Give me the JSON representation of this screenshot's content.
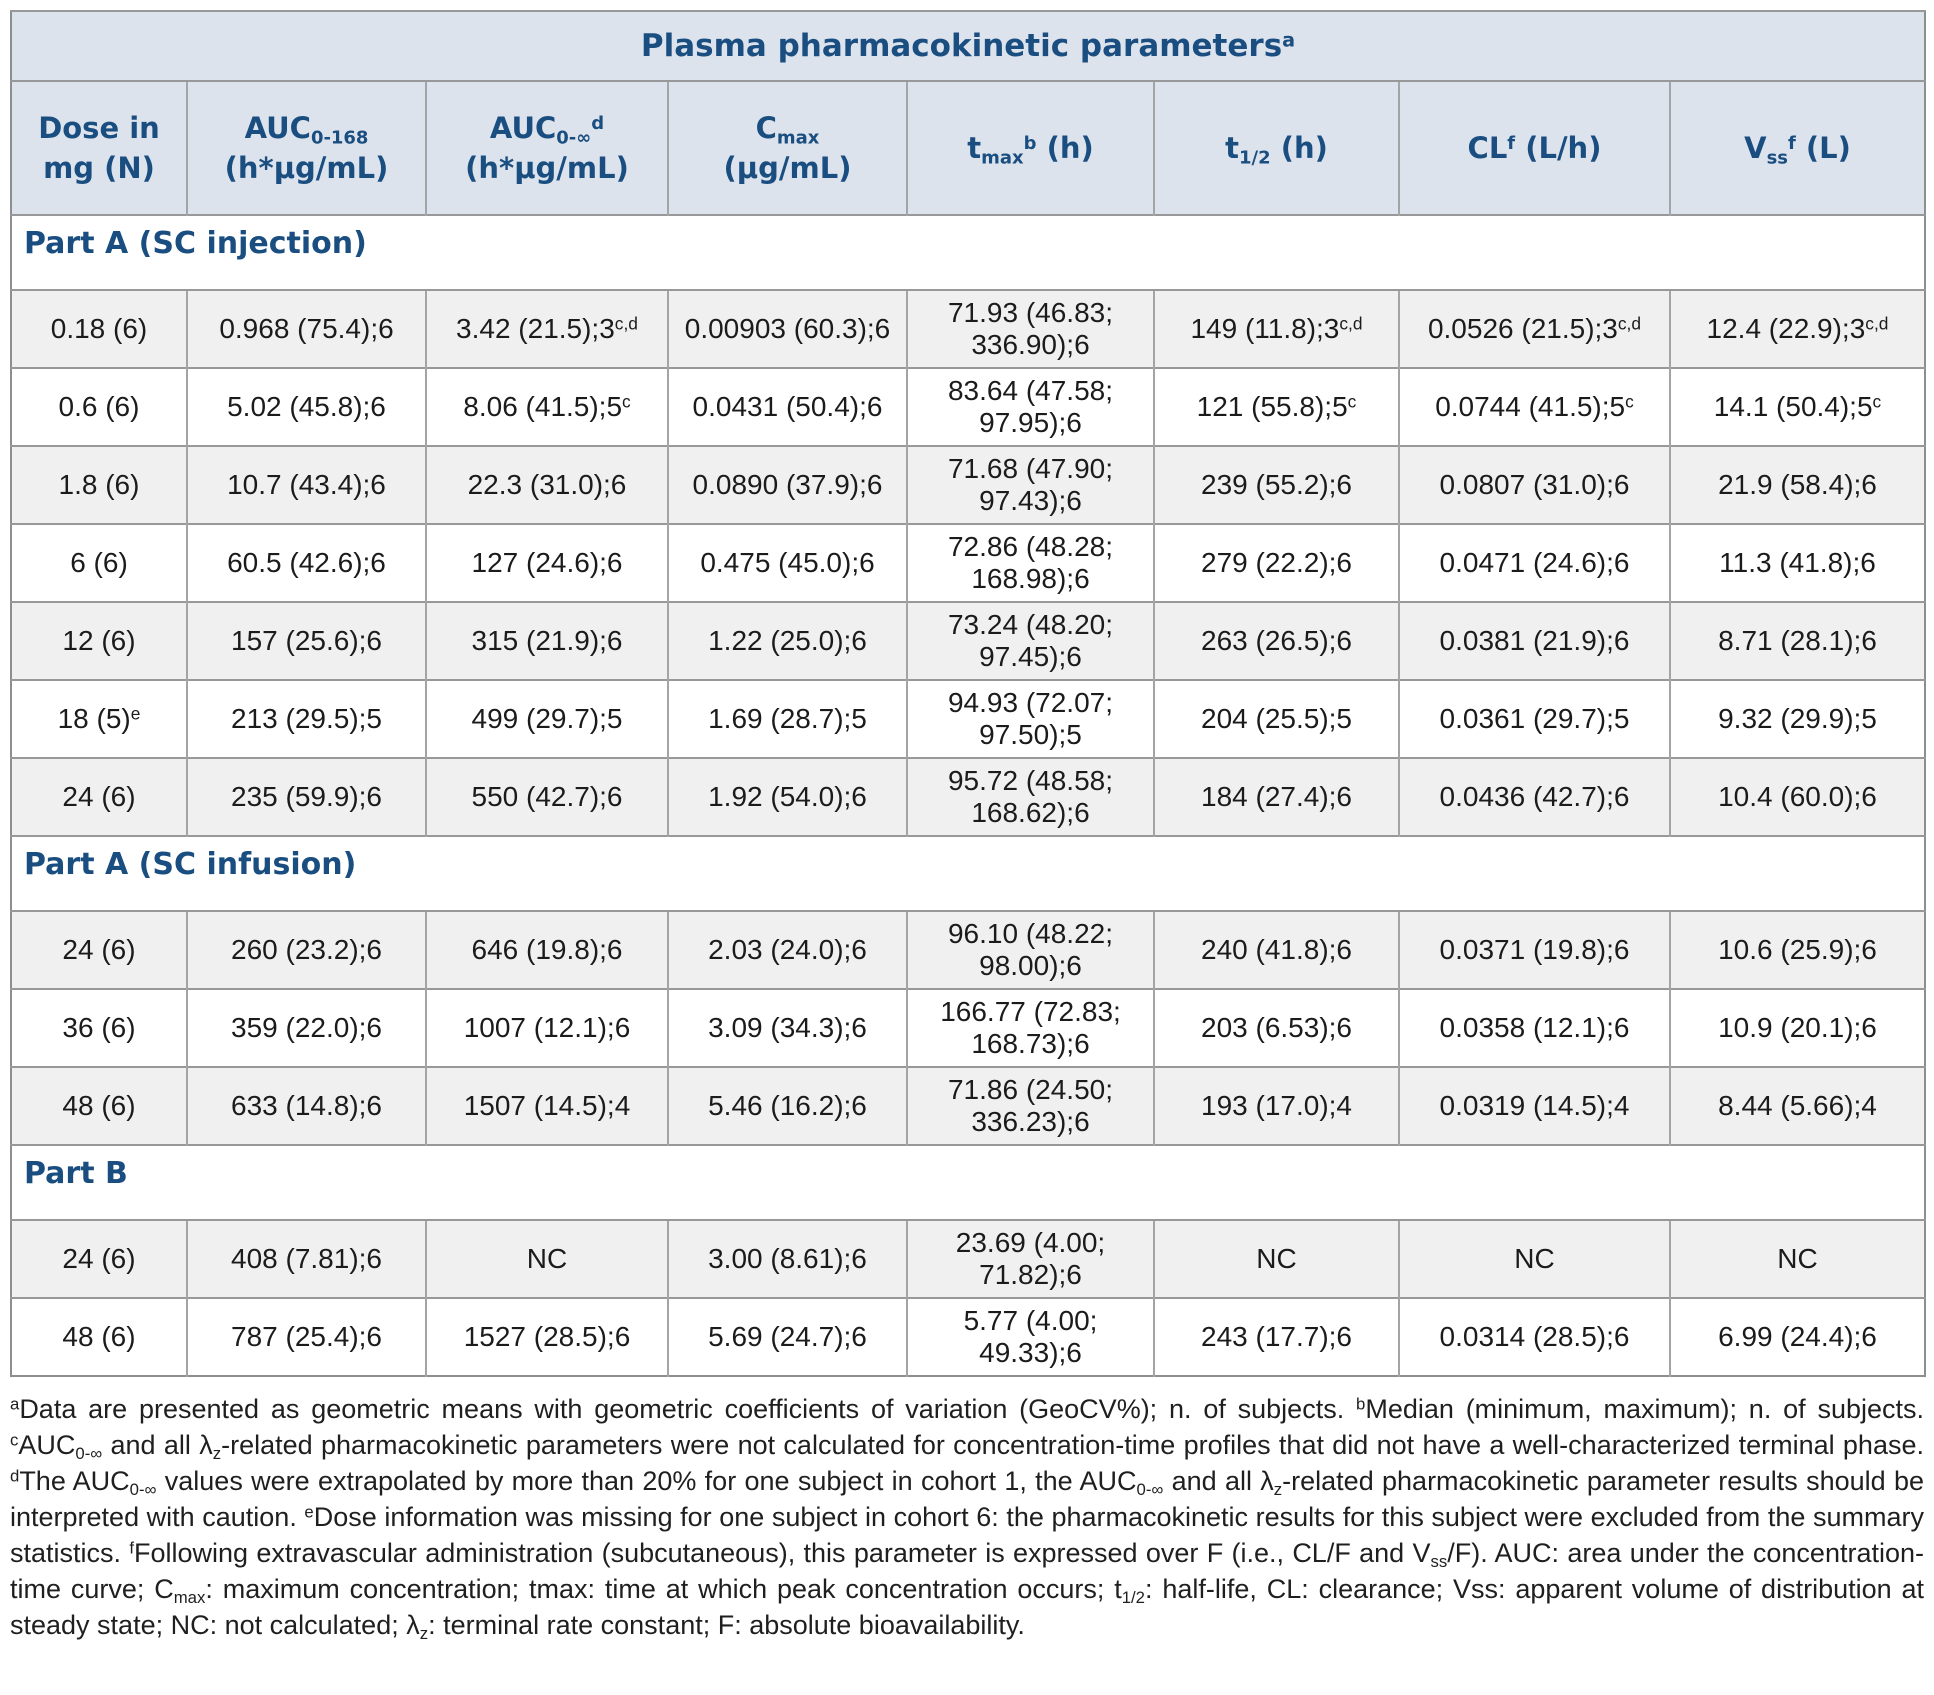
{
  "table": {
    "title": "Plasma pharmacokinetic parameters^a^",
    "columns": [
      {
        "key": "dose",
        "label": "Dose in\nmg (N)"
      },
      {
        "key": "auc0_168",
        "label": "AUC~0-168~\n(h*μg/mL)"
      },
      {
        "key": "auc0_inf",
        "label": "AUC~0-∞~^d^\n(h*μg/mL)"
      },
      {
        "key": "cmax",
        "label": "C~max~\n(μg/mL)"
      },
      {
        "key": "tmax",
        "label": "t~max~^b^ (h)"
      },
      {
        "key": "t_half",
        "label": "t~1/2~ (h)"
      },
      {
        "key": "cl",
        "label": "CL^f^ (L/h)"
      },
      {
        "key": "vss",
        "label": "V~ss~^f^ (L)"
      }
    ],
    "sections": [
      {
        "label": "Part A (SC injection)",
        "rows": [
          [
            "0.18 (6)",
            "0.968 (75.4);6",
            "3.42 (21.5);3^c,d^",
            "0.00903 (60.3);6",
            "71.93 (46.83; 336.90);6",
            "149 (11.8);3^c,d^",
            "0.0526 (21.5);3^c,d^",
            "12.4 (22.9);3^c,d^"
          ],
          [
            "0.6 (6)",
            "5.02 (45.8);6",
            "8.06 (41.5);5^c^",
            "0.0431 (50.4);6",
            "83.64 (47.58; 97.95);6",
            "121 (55.8);5^c^",
            "0.0744 (41.5);5^c^",
            "14.1 (50.4);5^c^"
          ],
          [
            "1.8 (6)",
            "10.7 (43.4);6",
            "22.3 (31.0);6",
            "0.0890 (37.9);6",
            "71.68 (47.90; 97.43);6",
            "239 (55.2);6",
            "0.0807 (31.0);6",
            "21.9 (58.4);6"
          ],
          [
            "6 (6)",
            "60.5 (42.6);6",
            "127 (24.6);6",
            "0.475 (45.0);6",
            "72.86 (48.28; 168.98);6",
            "279 (22.2);6",
            "0.0471 (24.6);6",
            "11.3 (41.8);6"
          ],
          [
            "12 (6)",
            "157 (25.6);6",
            "315 (21.9);6",
            "1.22 (25.0);6",
            "73.24 (48.20; 97.45);6",
            "263 (26.5);6",
            "0.0381 (21.9);6",
            "8.71 (28.1);6"
          ],
          [
            "18 (5)^e^",
            "213 (29.5);5",
            "499 (29.7);5",
            "1.69 (28.7);5",
            "94.93 (72.07; 97.50);5",
            "204 (25.5);5",
            "0.0361 (29.7);5",
            "9.32 (29.9);5"
          ],
          [
            "24 (6)",
            "235 (59.9);6",
            "550 (42.7);6",
            "1.92 (54.0);6",
            "95.72 (48.58; 168.62);6",
            "184 (27.4);6",
            "0.0436 (42.7);6",
            "10.4 (60.0);6"
          ]
        ]
      },
      {
        "label": "Part A (SC infusion)",
        "rows": [
          [
            "24 (6)",
            "260 (23.2);6",
            "646 (19.8);6",
            "2.03 (24.0);6",
            "96.10 (48.22; 98.00);6",
            "240 (41.8);6",
            "0.0371 (19.8);6",
            "10.6 (25.9);6"
          ],
          [
            "36 (6)",
            "359 (22.0);6",
            "1007 (12.1);6",
            "3.09 (34.3);6",
            "166.77 (72.83; 168.73);6",
            "203 (6.53);6",
            "0.0358 (12.1);6",
            "10.9 (20.1);6"
          ],
          [
            "48 (6)",
            "633 (14.8);6",
            "1507 (14.5);4",
            "5.46 (16.2);6",
            "71.86 (24.50; 336.23);6",
            "193 (17.0);4",
            "0.0319 (14.5);4",
            "8.44 (5.66);4"
          ]
        ]
      },
      {
        "label": "Part B",
        "rows": [
          [
            "24 (6)",
            "408 (7.81);6",
            "NC",
            "3.00 (8.61);6",
            "23.69 (4.00; 71.82);6",
            "NC",
            "NC",
            "NC"
          ],
          [
            "48 (6)",
            "787 (25.4);6",
            "1527 (28.5);6",
            "5.69 (24.7);6",
            "5.77 (4.00; 49.33);6",
            "243 (17.7);6",
            "0.0314 (28.5);6",
            "6.99 (24.4);6"
          ]
        ]
      }
    ]
  },
  "footnote": {
    "text": "^a^Data are presented as geometric means with geometric coefficients of variation (GeoCV%); n. of subjects. ^b^Median (minimum, maximum); n. of subjects. ^c^AUC~0-∞~ and all λ~z~-related pharmacokinetic parameters were not calculated for concentration-time profiles that did not have a well-characterized terminal phase. ^d^The AUC~0-∞~ values were extrapolated by more than 20% for one subject in cohort 1, the AUC~0-∞~ and all λ~z~-related pharmacokinetic parameter results should be interpreted with caution. ^e^Dose information was missing for one subject in cohort 6: the pharmacokinetic results for this subject were excluded from the summary statistics. ^f^Following extravascular administration (subcutaneous), this parameter is expressed over F (i.e., CL/F and V~ss~/F). AUC: area under the concentration-time curve; C~max~: maximum concentration; tmax: time at which peak concentration occurs; t~1/2~: half-life, CL: clearance; Vss: apparent volume of distribution at steady state; NC: not calculated; λ~z~: terminal rate constant; F: absolute bioavailability."
  },
  "colors": {
    "accent_blue": "#1a4e80",
    "header_bg": "#dde3ed",
    "row_alt_bg": "#f0f0f0"
  }
}
